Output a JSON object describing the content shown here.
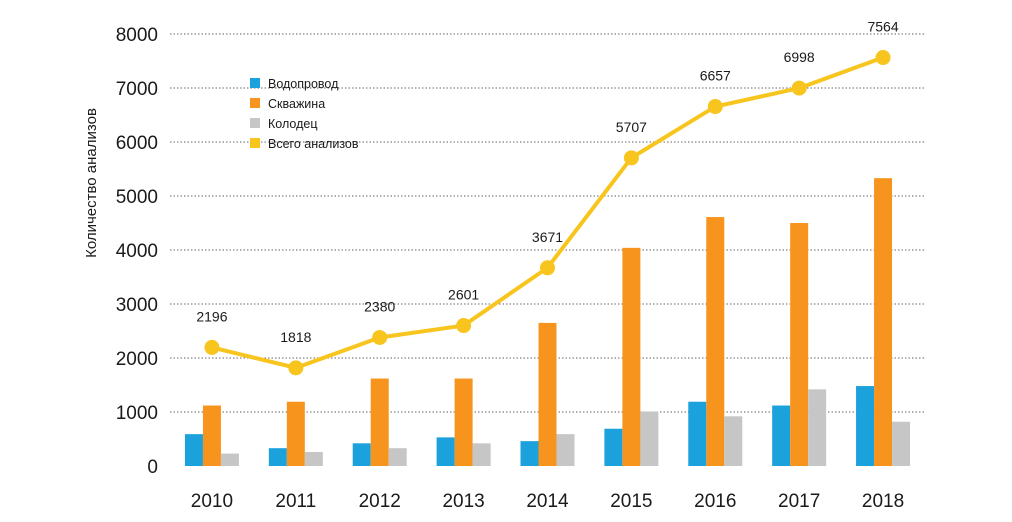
{
  "chart_data": {
    "type": "bar",
    "categories": [
      "2010",
      "2011",
      "2012",
      "2013",
      "2014",
      "2015",
      "2016",
      "2017",
      "2018"
    ],
    "ylabel": "Количество анализов",
    "ylim": [
      0,
      8000
    ],
    "yticks": [
      "0",
      "1000",
      "2000",
      "3000",
      "4000",
      "5000",
      "6000",
      "7000",
      "8000"
    ],
    "grid": true,
    "legend_position": "top-left",
    "series": [
      {
        "name": "Водопровод",
        "type": "bar",
        "color": "#1BA1DB",
        "values": [
          590,
          330,
          420,
          530,
          460,
          690,
          1190,
          1120,
          1480
        ]
      },
      {
        "name": "Скважина",
        "type": "bar",
        "color": "#F7941D",
        "values": [
          1120,
          1190,
          1620,
          1620,
          2650,
          4040,
          4610,
          4500,
          5330
        ]
      },
      {
        "name": "Колодец",
        "type": "bar",
        "color": "#C6C6C6",
        "values": [
          230,
          260,
          330,
          420,
          590,
          1010,
          920,
          1420,
          820
        ]
      },
      {
        "name": "Всего анализов",
        "type": "line",
        "color": "#F7C51E",
        "values": [
          2196,
          1818,
          2380,
          2601,
          3671,
          5707,
          6657,
          6998,
          7564
        ],
        "labels": [
          "2196",
          "1818",
          "2380",
          "2601",
          "3671",
          "5707",
          "6657",
          "6998",
          "7564"
        ]
      }
    ]
  }
}
